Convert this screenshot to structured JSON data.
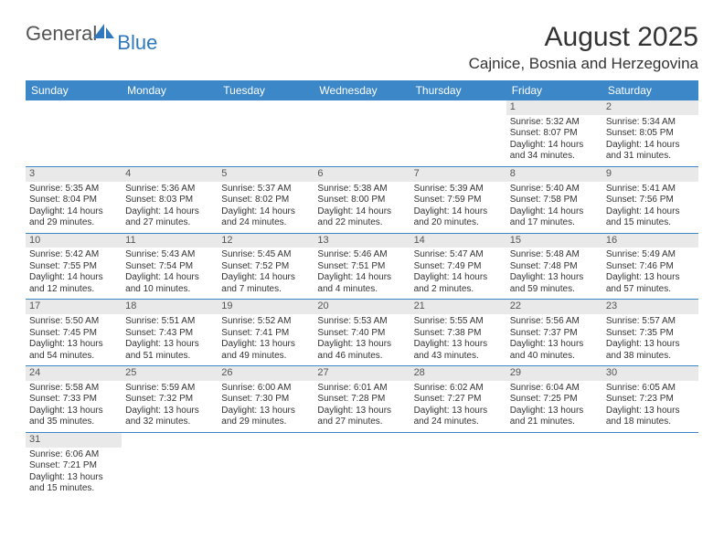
{
  "logo": {
    "text1": "General",
    "text2": "Blue"
  },
  "title": "August 2025",
  "location": "Cajnice, Bosnia and Herzegovina",
  "colors": {
    "header_bg": "#3b87c8",
    "header_text": "#ffffff",
    "daynum_bg": "#e9e9e9",
    "row_border": "#3b87c8",
    "text": "#333333",
    "logo_gray": "#555555",
    "logo_blue": "#2f78bd"
  },
  "fonts": {
    "title_size_pt": 22,
    "location_size_pt": 13,
    "weekday_size_pt": 9,
    "cell_size_pt": 7.5
  },
  "weekdays": [
    "Sunday",
    "Monday",
    "Tuesday",
    "Wednesday",
    "Thursday",
    "Friday",
    "Saturday"
  ],
  "weeks": [
    [
      null,
      null,
      null,
      null,
      null,
      {
        "n": "1",
        "sunrise": "Sunrise: 5:32 AM",
        "sunset": "Sunset: 8:07 PM",
        "daylight": "Daylight: 14 hours and 34 minutes."
      },
      {
        "n": "2",
        "sunrise": "Sunrise: 5:34 AM",
        "sunset": "Sunset: 8:05 PM",
        "daylight": "Daylight: 14 hours and 31 minutes."
      }
    ],
    [
      {
        "n": "3",
        "sunrise": "Sunrise: 5:35 AM",
        "sunset": "Sunset: 8:04 PM",
        "daylight": "Daylight: 14 hours and 29 minutes."
      },
      {
        "n": "4",
        "sunrise": "Sunrise: 5:36 AM",
        "sunset": "Sunset: 8:03 PM",
        "daylight": "Daylight: 14 hours and 27 minutes."
      },
      {
        "n": "5",
        "sunrise": "Sunrise: 5:37 AM",
        "sunset": "Sunset: 8:02 PM",
        "daylight": "Daylight: 14 hours and 24 minutes."
      },
      {
        "n": "6",
        "sunrise": "Sunrise: 5:38 AM",
        "sunset": "Sunset: 8:00 PM",
        "daylight": "Daylight: 14 hours and 22 minutes."
      },
      {
        "n": "7",
        "sunrise": "Sunrise: 5:39 AM",
        "sunset": "Sunset: 7:59 PM",
        "daylight": "Daylight: 14 hours and 20 minutes."
      },
      {
        "n": "8",
        "sunrise": "Sunrise: 5:40 AM",
        "sunset": "Sunset: 7:58 PM",
        "daylight": "Daylight: 14 hours and 17 minutes."
      },
      {
        "n": "9",
        "sunrise": "Sunrise: 5:41 AM",
        "sunset": "Sunset: 7:56 PM",
        "daylight": "Daylight: 14 hours and 15 minutes."
      }
    ],
    [
      {
        "n": "10",
        "sunrise": "Sunrise: 5:42 AM",
        "sunset": "Sunset: 7:55 PM",
        "daylight": "Daylight: 14 hours and 12 minutes."
      },
      {
        "n": "11",
        "sunrise": "Sunrise: 5:43 AM",
        "sunset": "Sunset: 7:54 PM",
        "daylight": "Daylight: 14 hours and 10 minutes."
      },
      {
        "n": "12",
        "sunrise": "Sunrise: 5:45 AM",
        "sunset": "Sunset: 7:52 PM",
        "daylight": "Daylight: 14 hours and 7 minutes."
      },
      {
        "n": "13",
        "sunrise": "Sunrise: 5:46 AM",
        "sunset": "Sunset: 7:51 PM",
        "daylight": "Daylight: 14 hours and 4 minutes."
      },
      {
        "n": "14",
        "sunrise": "Sunrise: 5:47 AM",
        "sunset": "Sunset: 7:49 PM",
        "daylight": "Daylight: 14 hours and 2 minutes."
      },
      {
        "n": "15",
        "sunrise": "Sunrise: 5:48 AM",
        "sunset": "Sunset: 7:48 PM",
        "daylight": "Daylight: 13 hours and 59 minutes."
      },
      {
        "n": "16",
        "sunrise": "Sunrise: 5:49 AM",
        "sunset": "Sunset: 7:46 PM",
        "daylight": "Daylight: 13 hours and 57 minutes."
      }
    ],
    [
      {
        "n": "17",
        "sunrise": "Sunrise: 5:50 AM",
        "sunset": "Sunset: 7:45 PM",
        "daylight": "Daylight: 13 hours and 54 minutes."
      },
      {
        "n": "18",
        "sunrise": "Sunrise: 5:51 AM",
        "sunset": "Sunset: 7:43 PM",
        "daylight": "Daylight: 13 hours and 51 minutes."
      },
      {
        "n": "19",
        "sunrise": "Sunrise: 5:52 AM",
        "sunset": "Sunset: 7:41 PM",
        "daylight": "Daylight: 13 hours and 49 minutes."
      },
      {
        "n": "20",
        "sunrise": "Sunrise: 5:53 AM",
        "sunset": "Sunset: 7:40 PM",
        "daylight": "Daylight: 13 hours and 46 minutes."
      },
      {
        "n": "21",
        "sunrise": "Sunrise: 5:55 AM",
        "sunset": "Sunset: 7:38 PM",
        "daylight": "Daylight: 13 hours and 43 minutes."
      },
      {
        "n": "22",
        "sunrise": "Sunrise: 5:56 AM",
        "sunset": "Sunset: 7:37 PM",
        "daylight": "Daylight: 13 hours and 40 minutes."
      },
      {
        "n": "23",
        "sunrise": "Sunrise: 5:57 AM",
        "sunset": "Sunset: 7:35 PM",
        "daylight": "Daylight: 13 hours and 38 minutes."
      }
    ],
    [
      {
        "n": "24",
        "sunrise": "Sunrise: 5:58 AM",
        "sunset": "Sunset: 7:33 PM",
        "daylight": "Daylight: 13 hours and 35 minutes."
      },
      {
        "n": "25",
        "sunrise": "Sunrise: 5:59 AM",
        "sunset": "Sunset: 7:32 PM",
        "daylight": "Daylight: 13 hours and 32 minutes."
      },
      {
        "n": "26",
        "sunrise": "Sunrise: 6:00 AM",
        "sunset": "Sunset: 7:30 PM",
        "daylight": "Daylight: 13 hours and 29 minutes."
      },
      {
        "n": "27",
        "sunrise": "Sunrise: 6:01 AM",
        "sunset": "Sunset: 7:28 PM",
        "daylight": "Daylight: 13 hours and 27 minutes."
      },
      {
        "n": "28",
        "sunrise": "Sunrise: 6:02 AM",
        "sunset": "Sunset: 7:27 PM",
        "daylight": "Daylight: 13 hours and 24 minutes."
      },
      {
        "n": "29",
        "sunrise": "Sunrise: 6:04 AM",
        "sunset": "Sunset: 7:25 PM",
        "daylight": "Daylight: 13 hours and 21 minutes."
      },
      {
        "n": "30",
        "sunrise": "Sunrise: 6:05 AM",
        "sunset": "Sunset: 7:23 PM",
        "daylight": "Daylight: 13 hours and 18 minutes."
      }
    ],
    [
      {
        "n": "31",
        "sunrise": "Sunrise: 6:06 AM",
        "sunset": "Sunset: 7:21 PM",
        "daylight": "Daylight: 13 hours and 15 minutes."
      },
      null,
      null,
      null,
      null,
      null,
      null
    ]
  ]
}
